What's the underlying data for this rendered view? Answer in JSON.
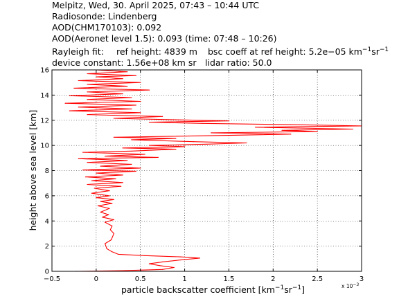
{
  "header": {
    "line1": "Melpitz, Wed, 30. April 2025, 07:43 – 10:44 UTC",
    "line2": "Radiosonde: Lindenberg",
    "line3": "AOD(CHM170103): 0.092",
    "line4": "AOD(Aeronet level 1.5): 0.093   (time: 07:48 – 10:26)",
    "rayleigh_label": "Rayleigh fit:",
    "ref_height": "ref height: 4839 m",
    "bsc_prefix": "bsc coeff at ref height: 5.2e−05 km",
    "bsc_exp1": "−1",
    "bsc_mid": "sr",
    "bsc_exp2": "−1",
    "device_constant": "device constant: 1.56e+08 km sr",
    "lidar_ratio": "lidar ratio: 50.0"
  },
  "axes": {
    "xlabel_main": "particle backscatter coefficient [km",
    "xlabel_exp1": "−1",
    "xlabel_mid": "sr",
    "xlabel_exp2": "−1",
    "xlabel_end": "]",
    "ylabel": "height above sea level [km]",
    "x_multiplier": "x 10",
    "x_multiplier_exp": "−3"
  },
  "chart_data": {
    "type": "line",
    "xlabel": "particle backscatter coefficient [km⁻¹sr⁻¹]",
    "ylabel": "height above sea level [km]",
    "x_scale_factor": "x 10⁻³",
    "xlim": [
      -0.5,
      3.0
    ],
    "ylim": [
      0,
      16
    ],
    "xticks": [
      -0.5,
      0,
      0.5,
      1,
      1.5,
      2,
      2.5,
      3
    ],
    "xtick_labels": [
      "−0.5",
      "0",
      "0.5",
      "1",
      "1.5",
      "2",
      "2.5",
      "3"
    ],
    "yticks": [
      0,
      2,
      4,
      6,
      8,
      10,
      12,
      14,
      16
    ],
    "ytick_labels": [
      "0",
      "2",
      "4",
      "6",
      "8",
      "10",
      "12",
      "14",
      "16"
    ],
    "grid": true,
    "grid_style": "dotted",
    "series": [
      {
        "color": "#ff0000",
        "points": [
          [
            -0.22,
            0.0
          ],
          [
            0.3,
            0.05
          ],
          [
            0.75,
            0.15
          ],
          [
            0.88,
            0.3
          ],
          [
            0.72,
            0.45
          ],
          [
            0.6,
            0.6
          ],
          [
            0.75,
            0.75
          ],
          [
            0.95,
            0.9
          ],
          [
            1.17,
            1.05
          ],
          [
            0.95,
            1.15
          ],
          [
            0.55,
            1.25
          ],
          [
            0.25,
            1.35
          ],
          [
            0.18,
            1.55
          ],
          [
            0.12,
            1.8
          ],
          [
            0.1,
            2.2
          ],
          [
            0.17,
            2.5
          ],
          [
            0.2,
            3.0
          ],
          [
            0.16,
            3.3
          ],
          [
            0.18,
            3.6
          ],
          [
            0.1,
            3.9
          ],
          [
            0.2,
            4.1
          ],
          [
            0.07,
            4.3
          ],
          [
            0.14,
            4.5
          ],
          [
            0.05,
            4.7
          ],
          [
            0.15,
            5.0
          ],
          [
            0.02,
            5.2
          ],
          [
            0.18,
            5.4
          ],
          [
            0.05,
            5.55
          ],
          [
            0.2,
            5.7
          ],
          [
            0.0,
            5.85
          ],
          [
            0.15,
            6.0
          ],
          [
            -0.05,
            6.2
          ],
          [
            0.15,
            6.4
          ],
          [
            -0.02,
            6.6
          ],
          [
            0.28,
            6.75
          ],
          [
            -0.1,
            6.9
          ],
          [
            0.3,
            7.05
          ],
          [
            -0.05,
            7.2
          ],
          [
            0.22,
            7.35
          ],
          [
            -0.12,
            7.5
          ],
          [
            0.3,
            7.65
          ],
          [
            0.0,
            7.8
          ],
          [
            0.45,
            7.95
          ],
          [
            -0.15,
            8.05
          ],
          [
            0.5,
            8.2
          ],
          [
            0.05,
            8.35
          ],
          [
            0.4,
            8.5
          ],
          [
            -0.1,
            8.65
          ],
          [
            0.35,
            8.8
          ],
          [
            -0.2,
            8.95
          ],
          [
            0.7,
            9.05
          ],
          [
            0.1,
            9.15
          ],
          [
            0.55,
            9.3
          ],
          [
            -0.15,
            9.45
          ],
          [
            0.4,
            9.55
          ],
          [
            0.9,
            9.7
          ],
          [
            0.3,
            9.8
          ],
          [
            1.0,
            9.9
          ],
          [
            0.6,
            10.0
          ],
          [
            1.25,
            10.1
          ],
          [
            1.7,
            10.2
          ],
          [
            1.1,
            10.3
          ],
          [
            0.4,
            10.45
          ],
          [
            0.9,
            10.55
          ],
          [
            0.2,
            10.65
          ],
          [
            1.5,
            10.8
          ],
          [
            2.2,
            10.9
          ],
          [
            1.3,
            11.0
          ],
          [
            2.5,
            11.1
          ],
          [
            2.1,
            11.2
          ],
          [
            2.9,
            11.3
          ],
          [
            1.8,
            11.45
          ],
          [
            3.0,
            11.55
          ],
          [
            2.2,
            11.65
          ],
          [
            1.2,
            11.75
          ],
          [
            0.6,
            11.85
          ],
          [
            1.5,
            11.95
          ],
          [
            0.8,
            12.05
          ],
          [
            0.2,
            12.15
          ],
          [
            0.75,
            12.3
          ],
          [
            -0.1,
            12.45
          ],
          [
            0.5,
            12.6
          ],
          [
            -0.3,
            12.75
          ],
          [
            0.4,
            12.9
          ],
          [
            -0.2,
            13.05
          ],
          [
            0.45,
            13.2
          ],
          [
            -0.35,
            13.35
          ],
          [
            0.5,
            13.5
          ],
          [
            -0.1,
            13.65
          ],
          [
            0.4,
            13.8
          ],
          [
            -0.3,
            13.95
          ],
          [
            0.3,
            14.1
          ],
          [
            -0.1,
            14.25
          ],
          [
            0.6,
            14.4
          ],
          [
            -0.25,
            14.55
          ],
          [
            0.35,
            14.7
          ],
          [
            -0.1,
            14.85
          ],
          [
            0.5,
            15.0
          ],
          [
            -0.2,
            15.15
          ],
          [
            0.3,
            15.3
          ],
          [
            0.0,
            15.45
          ],
          [
            0.45,
            15.55
          ],
          [
            -0.1,
            15.7
          ],
          [
            0.35,
            15.85
          ],
          [
            0.0,
            16.0
          ]
        ]
      }
    ]
  }
}
